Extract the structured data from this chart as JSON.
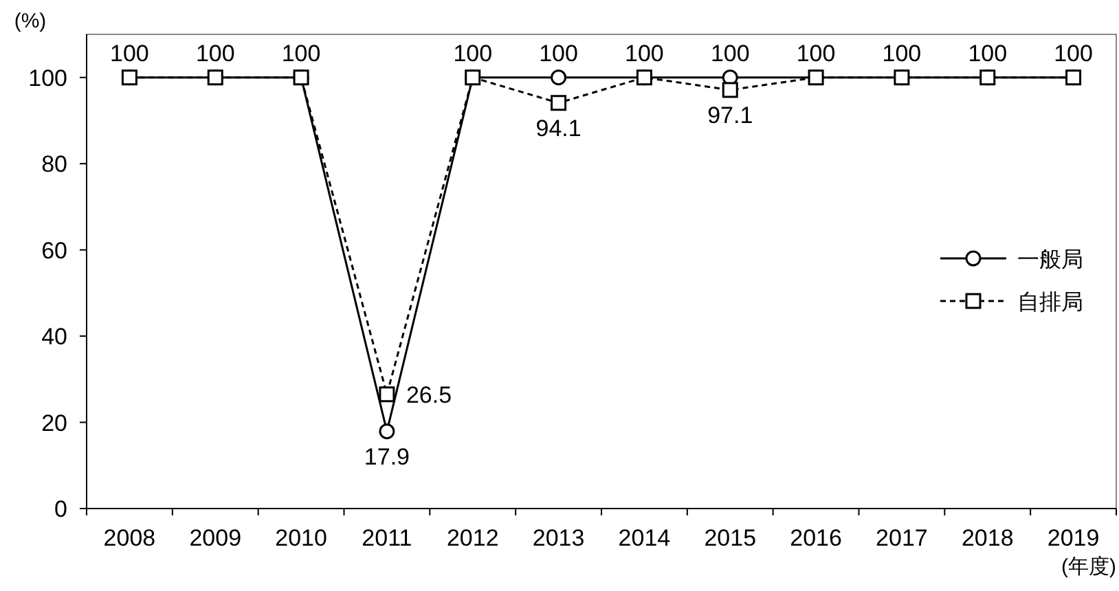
{
  "chart_data": {
    "type": "line",
    "ylabel": "(%)",
    "xlabel": "(年度)",
    "categories": [
      "2008",
      "2009",
      "2010",
      "2011",
      "2012",
      "2013",
      "2014",
      "2015",
      "2016",
      "2017",
      "2018",
      "2019"
    ],
    "series": [
      {
        "name": "一般局",
        "color": "#000000",
        "marker": "circle",
        "line_style": "solid",
        "values": [
          100,
          100,
          100,
          17.9,
          100,
          100,
          100,
          100,
          100,
          100,
          100,
          100
        ],
        "value_labels": [
          "100",
          "100",
          "100",
          "17.9",
          "100",
          "100",
          "100",
          "100",
          "100",
          "100",
          "100",
          "100"
        ]
      },
      {
        "name": "自排局",
        "color": "#000000",
        "marker": "square",
        "line_style": "dashed",
        "values": [
          100,
          100,
          100,
          26.5,
          100,
          94.1,
          100,
          97.1,
          100,
          100,
          100,
          100
        ],
        "value_labels": [
          null,
          null,
          null,
          "26.5",
          null,
          "94.1",
          null,
          "97.1",
          null,
          null,
          null,
          null
        ]
      }
    ],
    "ylim": [
      0,
      110
    ],
    "yticks": [
      0,
      20,
      40,
      60,
      80,
      100
    ],
    "grid": false,
    "legend": "right"
  }
}
